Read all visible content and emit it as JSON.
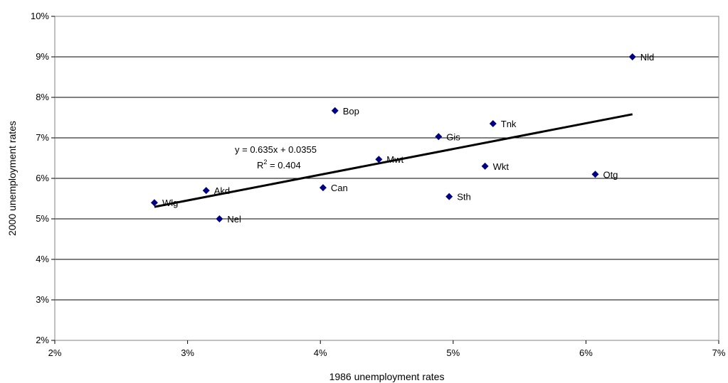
{
  "chart_data": {
    "type": "scatter",
    "xlabel": "1986 unemployment rates",
    "ylabel": "2000 unemployment rates",
    "xlim": [
      0.02,
      0.07
    ],
    "ylim": [
      0.02,
      0.1
    ],
    "x_ticks": [
      0.02,
      0.03,
      0.04,
      0.05,
      0.06,
      0.07
    ],
    "x_tick_labels": [
      "2%",
      "3%",
      "4%",
      "5%",
      "6%",
      "7%"
    ],
    "y_ticks": [
      0.02,
      0.03,
      0.04,
      0.05,
      0.06,
      0.07,
      0.08,
      0.09,
      0.1
    ],
    "y_tick_labels": [
      "2%",
      "3%",
      "4%",
      "5%",
      "6%",
      "7%",
      "8%",
      "9%",
      "10%"
    ],
    "grid": "horizontal",
    "marker_color": "#000080",
    "points": [
      {
        "label": "Wlg",
        "x": 0.0275,
        "y": 0.054
      },
      {
        "label": "Akd",
        "x": 0.0314,
        "y": 0.057
      },
      {
        "label": "Nel",
        "x": 0.0324,
        "y": 0.05
      },
      {
        "label": "Can",
        "x": 0.0402,
        "y": 0.0577
      },
      {
        "label": "Bop",
        "x": 0.0411,
        "y": 0.0767
      },
      {
        "label": "Mwt",
        "x": 0.0444,
        "y": 0.0647
      },
      {
        "label": "Gis",
        "x": 0.0489,
        "y": 0.0703
      },
      {
        "label": "Sth",
        "x": 0.0497,
        "y": 0.0555
      },
      {
        "label": "Wkt",
        "x": 0.0524,
        "y": 0.063
      },
      {
        "label": "Tnk",
        "x": 0.053,
        "y": 0.0735
      },
      {
        "label": "Otg",
        "x": 0.0607,
        "y": 0.061
      },
      {
        "label": "Nld",
        "x": 0.0635,
        "y": 0.09
      }
    ],
    "trendline": {
      "type": "linear",
      "slope": 0.635,
      "intercept": 0.0355,
      "x_range": [
        0.0275,
        0.0635
      ],
      "equation": "y = 0.635x + 0.0355",
      "r2_label": "R",
      "r2_sup": "2",
      "r2_value": " = 0.404"
    }
  }
}
